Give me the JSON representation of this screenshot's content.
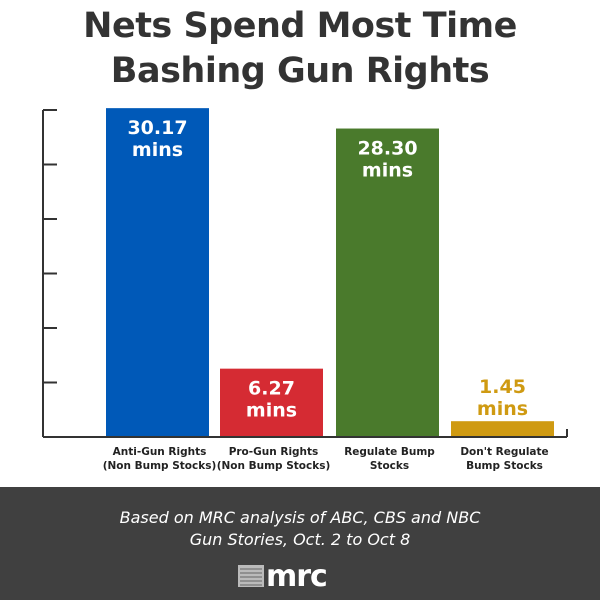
{
  "chart_data": {
    "type": "bar",
    "title": "Nets Spend Most Time Bashing Gun Rights",
    "title_lines": [
      "Nets Spend Most Time",
      "Bashing Gun Rights"
    ],
    "categories": [
      [
        "Anti-Gun Rights",
        "(Non Bump Stocks)"
      ],
      [
        "Pro-Gun Rights",
        "(Non Bump Stocks)"
      ],
      [
        "Regulate Bump",
        "Stocks"
      ],
      [
        "Don't Regulate",
        "Bump Stocks"
      ]
    ],
    "values": [
      30.17,
      6.27,
      28.3,
      1.45
    ],
    "value_labels": [
      "30.17",
      "6.27",
      "28.30",
      "1.45"
    ],
    "unit_label": "mins",
    "colors": [
      "#0059b8",
      "#d52b33",
      "#4a7a2c",
      "#cf9a12"
    ],
    "ylim": [
      0,
      30
    ],
    "yticks": [
      0,
      5,
      10,
      15,
      20,
      25,
      30
    ],
    "xlabel": "",
    "ylabel": "",
    "grid": false
  },
  "footer": {
    "note_lines": [
      "Based on MRC analysis of ABC, CBS and NBC",
      "Gun Stories, Oct. 2 to Oct 8"
    ],
    "logo_text": "mrc"
  }
}
